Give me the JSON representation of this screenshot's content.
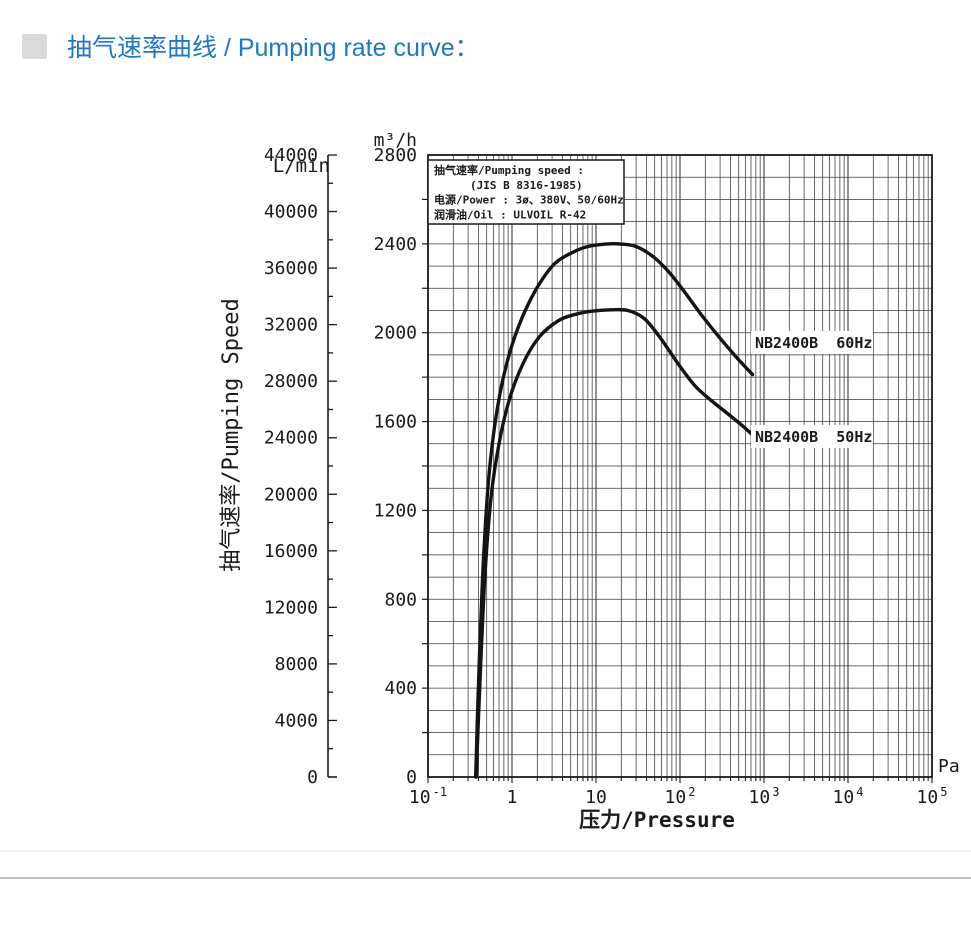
{
  "header": {
    "title": "抽气速率曲线 / Pumping rate curve："
  },
  "colors": {
    "title_blue": "#1e78c6",
    "bullet_gray": "#d9dadc",
    "ink": "#1a1a1a",
    "grid": "#3a3a3a",
    "divider": "#c3c3c3",
    "divider_faint": "#f2f2f2",
    "curve": "#141414",
    "box_bg": "#ffffff"
  },
  "chart_data": {
    "type": "line",
    "title": "抽气速率曲线 / Pumping rate curve",
    "xlabel": "压力/Pressure",
    "x_unit": "Pa",
    "x_scale": "log",
    "x_range": [
      0.1,
      100000
    ],
    "x_ticks": [
      {
        "value": 0.1,
        "base": "10",
        "exp": "-1"
      },
      {
        "value": 1,
        "base": "1",
        "exp": ""
      },
      {
        "value": 10,
        "base": "10",
        "exp": ""
      },
      {
        "value": 100,
        "base": "10",
        "exp": "2"
      },
      {
        "value": 1000,
        "base": "10",
        "exp": "3"
      },
      {
        "value": 10000,
        "base": "10",
        "exp": "4"
      },
      {
        "value": 100000,
        "base": "10",
        "exp": "5"
      }
    ],
    "y_left_inner": {
      "unit": "m³/h",
      "max": 2800,
      "label_step": 400,
      "tick_step": 200,
      "grid_step": 100
    },
    "y_left_outer": {
      "unit": "L/min",
      "max": 44000,
      "label_step": 4000,
      "tick_step": 2000,
      "title": "抽气速率/Pumping Speed"
    },
    "legend_lines": [
      "抽气速率/Pumping speed :",
      "(JIS B 8316-1985)",
      "电源/Power : 3ø、380V、50/60Hz",
      "润滑油/Oil : ULVOIL R-42"
    ],
    "series": [
      {
        "name": "NB2400B  60Hz",
        "points": [
          [
            0.37,
            0
          ],
          [
            0.39,
            300
          ],
          [
            0.42,
            650
          ],
          [
            0.46,
            1000
          ],
          [
            0.53,
            1350
          ],
          [
            0.65,
            1630
          ],
          [
            0.85,
            1850
          ],
          [
            1.2,
            2030
          ],
          [
            1.9,
            2190
          ],
          [
            3.2,
            2310
          ],
          [
            5.5,
            2365
          ],
          [
            8,
            2388
          ],
          [
            13,
            2399
          ],
          [
            19,
            2400
          ],
          [
            30,
            2388
          ],
          [
            48,
            2342
          ],
          [
            75,
            2270
          ],
          [
            115,
            2180
          ],
          [
            180,
            2080
          ],
          [
            290,
            1982
          ],
          [
            460,
            1893
          ],
          [
            620,
            1840
          ],
          [
            730,
            1812
          ]
        ]
      },
      {
        "name": "NB2400B  50Hz",
        "points": [
          [
            0.375,
            0
          ],
          [
            0.4,
            280
          ],
          [
            0.435,
            600
          ],
          [
            0.48,
            930
          ],
          [
            0.56,
            1250
          ],
          [
            0.7,
            1500
          ],
          [
            0.93,
            1700
          ],
          [
            1.35,
            1860
          ],
          [
            2.1,
            1980
          ],
          [
            3.6,
            2055
          ],
          [
            6,
            2085
          ],
          [
            9.5,
            2098
          ],
          [
            15,
            2103
          ],
          [
            24,
            2100
          ],
          [
            38,
            2062
          ],
          [
            60,
            1970
          ],
          [
            95,
            1860
          ],
          [
            150,
            1762
          ],
          [
            240,
            1692
          ],
          [
            380,
            1632
          ],
          [
            550,
            1582
          ],
          [
            730,
            1540
          ]
        ]
      }
    ]
  }
}
